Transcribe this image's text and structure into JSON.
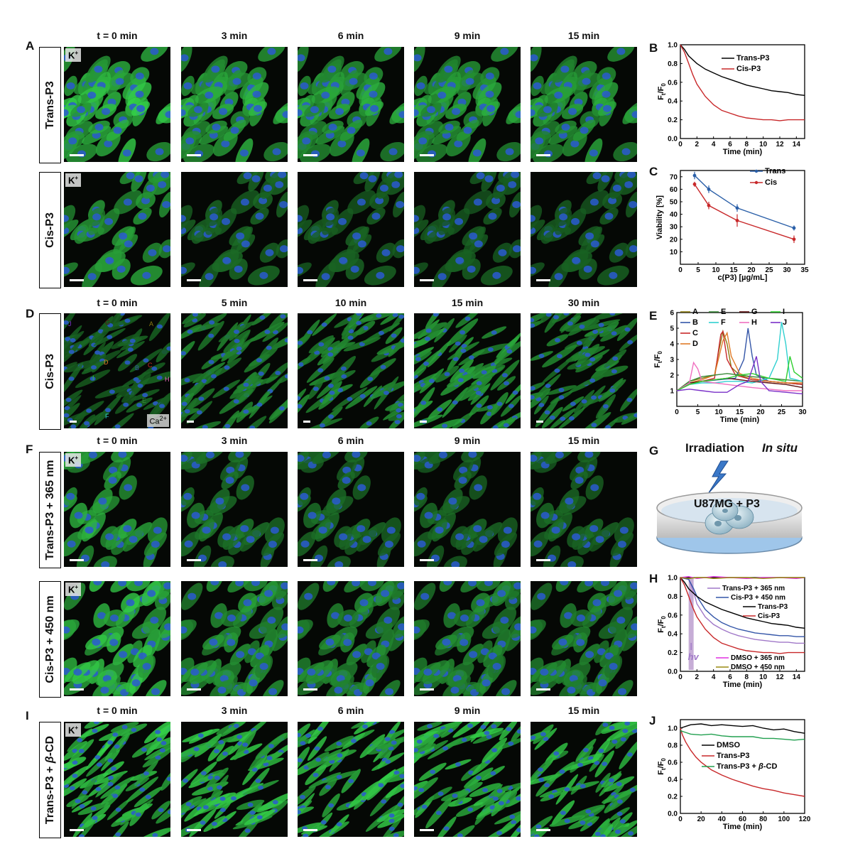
{
  "panels": {
    "A": "A",
    "B": "B",
    "C": "C",
    "D": "D",
    "E": "E",
    "F": "F",
    "G": "G",
    "H": "H",
    "I": "I",
    "J": "J"
  },
  "rows": [
    {
      "id": "trans",
      "label": "Trans-P3",
      "times": [
        "t = 0 min",
        "3 min",
        "6 min",
        "9 min",
        "15 min"
      ],
      "badge": "K",
      "badge_sup": "+",
      "intensity": [
        1.0,
        0.85,
        0.8,
        0.78,
        0.75
      ],
      "style": "dense"
    },
    {
      "id": "cis",
      "label": "Cis-P3",
      "badge": "K",
      "badge_sup": "+",
      "intensity": [
        0.75,
        0.35,
        0.3,
        0.28,
        0.28
      ],
      "style": "oval"
    },
    {
      "id": "ca",
      "label": "Cis-P3",
      "times": [
        "t = 0 min",
        "5 min",
        "10 min",
        "15 min",
        "30 min"
      ],
      "badge": "",
      "ca_badge": "Ca",
      "ca_sup": "2+",
      "intensity": [
        0.3,
        0.55,
        0.6,
        0.75,
        0.55
      ],
      "style": "fiber"
    },
    {
      "id": "t365",
      "label": "Trans-P3 + 365 nm",
      "times": [
        "t = 0 min",
        "3 min",
        "6 min",
        "9 min",
        "15 min"
      ],
      "badge": "K",
      "badge_sup": "+",
      "intensity": [
        0.8,
        0.45,
        0.38,
        0.35,
        0.35
      ],
      "style": "oval"
    },
    {
      "id": "c450",
      "label": "Cis-P3 + 450 nm",
      "badge": "K",
      "badge_sup": "+",
      "intensity": [
        1.0,
        0.7,
        0.62,
        0.6,
        0.58
      ],
      "style": "dense"
    },
    {
      "id": "tcd",
      "label": "Trans-P3 + β-CD",
      "label_main": "Trans-P3 + ",
      "label_italic": "β",
      "label_tail": "-CD",
      "times": [
        "t = 0 min",
        "3 min",
        "6 min",
        "9 min",
        "15 min"
      ],
      "badge": "K",
      "badge_sup": "+",
      "intensity": [
        1.0,
        0.98,
        0.97,
        0.96,
        0.95
      ],
      "style": "fiber"
    }
  ],
  "roi_letters": [
    "J",
    "G",
    "A",
    "D",
    "C",
    "B",
    "H",
    "I",
    "E",
    "F"
  ],
  "schematic": {
    "irradiation": "Irradiation",
    "in_situ": "In situ",
    "dish_label": "U87MG + P3"
  },
  "chart_data": [
    {
      "id": "B",
      "type": "line",
      "xlabel": "Time (min)",
      "ylabel": "Ft/F0",
      "xlim": [
        0,
        15
      ],
      "ylim": [
        0.0,
        1.0
      ],
      "xticks": [
        0,
        2,
        4,
        6,
        8,
        10,
        12,
        14
      ],
      "yticks": [
        0.0,
        0.2,
        0.4,
        0.6,
        0.8,
        1.0
      ],
      "legend_position": "top-right",
      "series": [
        {
          "name": "Trans-P3",
          "color": "#000000",
          "x": [
            0,
            0.5,
            1,
            2,
            3,
            4,
            5,
            6,
            7,
            8,
            9,
            10,
            11,
            12,
            13,
            14,
            15
          ],
          "y": [
            1.0,
            0.95,
            0.88,
            0.8,
            0.74,
            0.7,
            0.66,
            0.63,
            0.6,
            0.57,
            0.55,
            0.53,
            0.51,
            0.5,
            0.49,
            0.47,
            0.46
          ]
        },
        {
          "name": "Cis-P3",
          "color": "#c8282a",
          "x": [
            0,
            0.5,
            1,
            1.5,
            2,
            3,
            4,
            5,
            6,
            7,
            8,
            9,
            10,
            11,
            12,
            13,
            14,
            15
          ],
          "y": [
            1.0,
            0.92,
            0.8,
            0.68,
            0.58,
            0.45,
            0.36,
            0.3,
            0.27,
            0.24,
            0.22,
            0.21,
            0.2,
            0.2,
            0.19,
            0.2,
            0.2,
            0.2
          ]
        }
      ]
    },
    {
      "id": "C",
      "type": "line",
      "xlabel": "c(P3) [µg/mL]",
      "ylabel": "Viability [%]",
      "xlim": [
        0,
        35
      ],
      "ylim": [
        0,
        75
      ],
      "xticks": [
        0,
        5,
        10,
        15,
        20,
        25,
        30,
        35
      ],
      "yticks": [
        10,
        20,
        30,
        40,
        50,
        60,
        70
      ],
      "legend_position": "top-right",
      "series": [
        {
          "name": "Trans",
          "color": "#2a5fa8",
          "x": [
            4,
            8,
            16,
            32
          ],
          "y": [
            71,
            60,
            45,
            29
          ],
          "err": [
            3,
            3,
            3,
            2
          ]
        },
        {
          "name": "Cis",
          "color": "#c8282a",
          "x": [
            4,
            8,
            16,
            32
          ],
          "y": [
            64,
            47,
            35,
            20
          ],
          "err": [
            2,
            3,
            5,
            3
          ]
        }
      ]
    },
    {
      "id": "E",
      "type": "line",
      "xlabel": "Time (min)",
      "ylabel": "Ft/F0",
      "xlim": [
        0,
        30
      ],
      "ylim": [
        0,
        6
      ],
      "xticks": [
        0,
        5,
        10,
        15,
        20,
        25,
        30
      ],
      "yticks": [
        1,
        2,
        3,
        4,
        5,
        6
      ],
      "legend_position": "top",
      "series": [
        {
          "name": "A",
          "color": "#8a7a10",
          "x": [
            0,
            3,
            6,
            9,
            10,
            11,
            12,
            13,
            15,
            18,
            22,
            26,
            30
          ],
          "y": [
            1,
            1.6,
            1.8,
            2.0,
            3.5,
            4.8,
            4.0,
            2.5,
            2.0,
            1.7,
            1.6,
            1.5,
            1.4
          ]
        },
        {
          "name": "B",
          "color": "#3456a8",
          "x": [
            0,
            3,
            6,
            10,
            14,
            16,
            17,
            18,
            19,
            22,
            26,
            30
          ],
          "y": [
            1,
            1.5,
            1.6,
            1.7,
            1.8,
            3.0,
            5.0,
            3.2,
            2.0,
            1.6,
            1.5,
            1.4
          ]
        },
        {
          "name": "C",
          "color": "#c8282a",
          "x": [
            0,
            3,
            6,
            9,
            10.5,
            11,
            12,
            14,
            18,
            22,
            26,
            30
          ],
          "y": [
            1,
            1.4,
            1.6,
            1.8,
            4.6,
            4.8,
            3.0,
            2.0,
            1.7,
            1.6,
            1.5,
            1.4
          ]
        },
        {
          "name": "D",
          "color": "#e07b28",
          "x": [
            0,
            3,
            6,
            9,
            11,
            12,
            13,
            15,
            18,
            22,
            26,
            30
          ],
          "y": [
            1,
            1.5,
            1.7,
            2.0,
            4.2,
            4.7,
            3.2,
            2.1,
            1.8,
            1.6,
            1.5,
            1.5
          ]
        },
        {
          "name": "E",
          "color": "#3a8a3a",
          "x": [
            0,
            3,
            6,
            9,
            12,
            15,
            18,
            22,
            26,
            30
          ],
          "y": [
            1,
            1.6,
            1.9,
            2.0,
            2.1,
            2.0,
            1.9,
            1.8,
            1.7,
            1.6
          ]
        },
        {
          "name": "F",
          "color": "#30d0d0",
          "x": [
            0,
            3,
            6,
            9,
            12,
            15,
            18,
            22,
            24,
            25,
            26,
            27,
            30
          ],
          "y": [
            1,
            1.4,
            1.5,
            1.5,
            1.6,
            1.6,
            1.5,
            1.8,
            3.0,
            5.4,
            4.0,
            1.8,
            1.6
          ]
        },
        {
          "name": "G",
          "color": "#5a1010",
          "x": [
            0,
            3,
            6,
            9,
            12,
            15,
            18,
            22,
            26,
            30
          ],
          "y": [
            1,
            1.5,
            1.6,
            1.7,
            1.8,
            1.7,
            1.6,
            1.5,
            1.4,
            1.2
          ]
        },
        {
          "name": "H",
          "color": "#f06fc0",
          "x": [
            0,
            3,
            4,
            5,
            6,
            9,
            12,
            15,
            18,
            22,
            26,
            30
          ],
          "y": [
            1,
            1.5,
            2.8,
            2.4,
            1.6,
            1.5,
            1.4,
            1.3,
            1.2,
            1.1,
            1.0,
            1.0
          ]
        },
        {
          "name": "I",
          "color": "#2fcf2f",
          "x": [
            0,
            3,
            6,
            9,
            12,
            15,
            18,
            22,
            26,
            27,
            28,
            30
          ],
          "y": [
            1,
            1.4,
            1.6,
            1.7,
            1.8,
            2.0,
            2.1,
            1.8,
            1.6,
            3.2,
            2.2,
            1.8
          ]
        },
        {
          "name": "J",
          "color": "#7a30c8",
          "x": [
            0,
            3,
            6,
            9,
            12,
            15,
            17,
            19,
            20,
            22,
            26,
            30
          ],
          "y": [
            1,
            1.1,
            1.0,
            0.9,
            0.9,
            1.4,
            1.6,
            3.2,
            1.6,
            1.0,
            0.9,
            0.8
          ]
        }
      ]
    },
    {
      "id": "H",
      "type": "line",
      "xlabel": "Time (min)",
      "ylabel": "Ft/F0",
      "xlim": [
        0,
        15
      ],
      "ylim": [
        0.0,
        1.0
      ],
      "xticks": [
        0,
        2,
        4,
        6,
        8,
        10,
        12,
        14
      ],
      "yticks": [
        0.0,
        0.2,
        0.4,
        0.6,
        0.8,
        1.0
      ],
      "annotation": "hv",
      "irradiation_window": [
        1,
        1.6
      ],
      "series": [
        {
          "name": "Trans-P3 + 365 nm",
          "color": "#a078c8",
          "x": [
            0,
            1,
            1.6,
            2,
            3,
            4,
            5,
            6,
            7,
            8,
            9,
            10,
            11,
            12,
            13,
            14,
            15
          ],
          "y": [
            1.0,
            0.98,
            0.85,
            0.72,
            0.58,
            0.5,
            0.45,
            0.41,
            0.38,
            0.36,
            0.34,
            0.33,
            0.32,
            0.31,
            0.31,
            0.3,
            0.3
          ]
        },
        {
          "name": "Cis-P3 + 450 nm",
          "color": "#3456a8",
          "x": [
            0,
            1,
            1.6,
            2,
            3,
            4,
            5,
            6,
            7,
            8,
            9,
            10,
            11,
            12,
            13,
            14,
            15
          ],
          "y": [
            1.0,
            0.98,
            0.88,
            0.8,
            0.66,
            0.58,
            0.52,
            0.48,
            0.45,
            0.43,
            0.41,
            0.4,
            0.39,
            0.38,
            0.38,
            0.37,
            0.37
          ]
        },
        {
          "name": "Trans-P3",
          "color": "#000000",
          "x": [
            0,
            0.5,
            1,
            2,
            3,
            4,
            5,
            6,
            7,
            8,
            9,
            10,
            11,
            12,
            13,
            14,
            15
          ],
          "y": [
            1.0,
            0.95,
            0.88,
            0.8,
            0.74,
            0.7,
            0.66,
            0.63,
            0.6,
            0.57,
            0.55,
            0.53,
            0.51,
            0.5,
            0.49,
            0.47,
            0.46
          ]
        },
        {
          "name": "Cis-P3",
          "color": "#c8282a",
          "x": [
            0,
            0.5,
            1,
            1.5,
            2,
            3,
            4,
            5,
            6,
            7,
            8,
            9,
            10,
            11,
            12,
            13,
            14,
            15
          ],
          "y": [
            1.0,
            0.92,
            0.8,
            0.68,
            0.58,
            0.45,
            0.36,
            0.3,
            0.27,
            0.24,
            0.22,
            0.21,
            0.2,
            0.2,
            0.19,
            0.2,
            0.2,
            0.2
          ]
        },
        {
          "name": "DMSO + 365 nm",
          "color": "#e030e0",
          "x": [
            0,
            1,
            2,
            3,
            4,
            6,
            8,
            10,
            12,
            14,
            15
          ],
          "y": [
            1.0,
            1.01,
            0.99,
            1.0,
            1.01,
            1.0,
            0.99,
            1.0,
            1.0,
            0.99,
            1.0
          ]
        },
        {
          "name": "DMSO + 450 nm",
          "color": "#9a8a10",
          "x": [
            0,
            1,
            2,
            3,
            4,
            6,
            8,
            10,
            12,
            14,
            15
          ],
          "y": [
            1.0,
            0.99,
            1.0,
            1.0,
            0.99,
            1.0,
            1.0,
            0.99,
            1.0,
            1.0,
            1.0
          ]
        }
      ]
    },
    {
      "id": "J",
      "type": "line",
      "xlabel": "Time (min)",
      "ylabel": "Ft/F0",
      "xlim": [
        0,
        120
      ],
      "ylim": [
        0.0,
        1.1
      ],
      "xticks": [
        0,
        20,
        40,
        60,
        80,
        100,
        120
      ],
      "yticks": [
        0.0,
        0.2,
        0.4,
        0.6,
        0.8,
        1.0
      ],
      "series": [
        {
          "name": "DMSO",
          "color": "#000000",
          "x": [
            0,
            5,
            10,
            20,
            30,
            40,
            50,
            60,
            70,
            80,
            90,
            100,
            110,
            120
          ],
          "y": [
            1.0,
            1.02,
            1.04,
            1.05,
            1.03,
            1.04,
            1.03,
            1.02,
            1.03,
            1.0,
            0.98,
            0.99,
            0.96,
            0.94
          ]
        },
        {
          "name": "Trans-P3",
          "color": "#c8282a",
          "x": [
            0,
            2,
            5,
            10,
            15,
            20,
            30,
            40,
            50,
            60,
            70,
            80,
            90,
            100,
            110,
            120
          ],
          "y": [
            1.0,
            0.92,
            0.84,
            0.74,
            0.66,
            0.6,
            0.51,
            0.45,
            0.4,
            0.36,
            0.32,
            0.29,
            0.27,
            0.24,
            0.22,
            0.2
          ]
        },
        {
          "name": "Trans-P3 + β-CD",
          "color": "#22a050",
          "x": [
            0,
            5,
            10,
            20,
            30,
            40,
            50,
            60,
            70,
            80,
            90,
            100,
            110,
            120
          ],
          "y": [
            0.97,
            0.95,
            0.93,
            0.92,
            0.93,
            0.91,
            0.9,
            0.9,
            0.9,
            0.88,
            0.88,
            0.87,
            0.86,
            0.87
          ]
        }
      ]
    }
  ],
  "legend_J": [
    "DMSO",
    "Trans-P3",
    "Trans-P3 + ",
    "β",
    "-CD"
  ]
}
